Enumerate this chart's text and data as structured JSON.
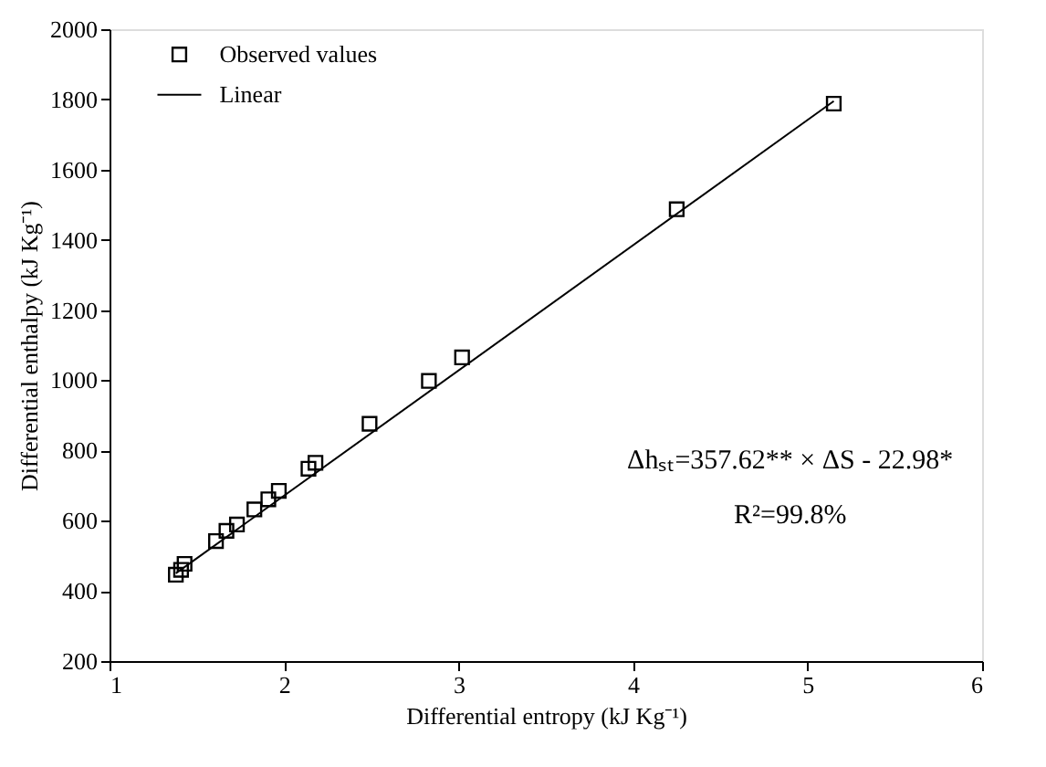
{
  "chart_data": {
    "type": "scatter",
    "xlabel": "Differential entropy (kJ Kg⁻¹)",
    "ylabel": "Differential enthalpy (kJ Kg⁻¹)",
    "xlim": [
      1,
      6
    ],
    "xticks": [
      1,
      2,
      3,
      4,
      5,
      6
    ],
    "ylim": [
      200,
      2000
    ],
    "yticks": [
      200,
      400,
      600,
      800,
      1000,
      1200,
      1400,
      1600,
      1800,
      2000
    ],
    "grid": false,
    "legend": "top left",
    "series": [
      {
        "name": "Observed values",
        "marker": "square",
        "color": "#000000",
        "x": [
          1.38,
          1.41,
          1.43,
          1.61,
          1.67,
          1.73,
          1.83,
          1.91,
          1.97,
          2.14,
          2.18,
          2.49,
          2.83,
          3.02,
          4.25,
          5.15
        ],
        "values": [
          446,
          460,
          477,
          542,
          571,
          589,
          632,
          661,
          685,
          748,
          765,
          876,
          998,
          1065,
          1487,
          1788
        ]
      },
      {
        "name": "Linear",
        "type": "line",
        "marker": "none",
        "line_style": "solid",
        "color": "#000000",
        "x": [
          1.38,
          5.15
        ],
        "values": [
          450,
          1795
        ]
      }
    ],
    "annotations": [
      "Δhₛₜ=357.62** × ΔS - 22.98*",
      "R²=99.8%"
    ]
  }
}
